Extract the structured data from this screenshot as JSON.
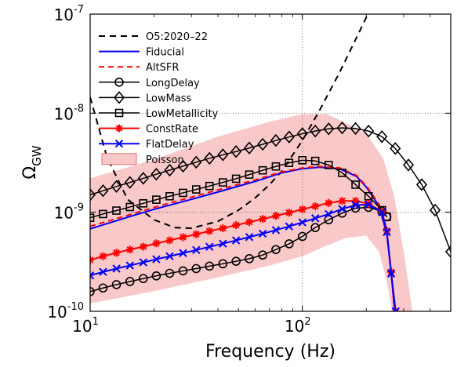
{
  "chart_data": {
    "type": "line",
    "xlabel": "Frequency (Hz)",
    "ylabel_main": "Ω",
    "ylabel_sub": "GW",
    "x_scale": "log",
    "y_scale": "log",
    "xlim": [
      10,
      500
    ],
    "ylim": [
      1e-10,
      1e-07
    ],
    "x_ticks": [
      {
        "value": 10,
        "base": "10",
        "exp": "1"
      },
      {
        "value": 100,
        "base": "10",
        "exp": "2"
      }
    ],
    "y_ticks": [
      {
        "value": 1e-10,
        "base": "10",
        "exp": "-10"
      },
      {
        "value": 1e-09,
        "base": "10",
        "exp": "-9"
      },
      {
        "value": 1e-08,
        "base": "10",
        "exp": "-8"
      },
      {
        "value": 1e-07,
        "base": "10",
        "exp": "-7"
      }
    ],
    "grid": "major-dotted",
    "legend_position": "top-left",
    "band": {
      "name": "Poisson",
      "color": "#f9c8c8",
      "edge": "#e07070",
      "upper": [
        [
          10,
          2.2e-09
        ],
        [
          20,
          3.4e-09
        ],
        [
          40,
          5.8e-09
        ],
        [
          70,
          8.2e-09
        ],
        [
          100,
          9.8e-09
        ],
        [
          130,
          9.8e-09
        ],
        [
          160,
          8e-09
        ],
        [
          200,
          6.2e-09
        ],
        [
          240,
          3.5e-09
        ],
        [
          270,
          1.5e-09
        ],
        [
          300,
          4e-10
        ],
        [
          330,
          1e-10
        ]
      ],
      "lower": [
        [
          10,
          1.2e-10
        ],
        [
          20,
          1.6e-10
        ],
        [
          40,
          2.2e-10
        ],
        [
          70,
          2.9e-10
        ],
        [
          100,
          3.6e-10
        ],
        [
          130,
          4.6e-10
        ],
        [
          160,
          5.5e-10
        ],
        [
          200,
          5.8e-10
        ],
        [
          230,
          4e-10
        ],
        [
          250,
          2e-10
        ],
        [
          265,
          1e-10
        ]
      ]
    },
    "series": [
      {
        "name": "O5:2020–22",
        "color": "#000000",
        "dash": "8,6",
        "marker": "none",
        "width": 2,
        "x": [
          10,
          12,
          15,
          20,
          25,
          30,
          40,
          50,
          60,
          70,
          80,
          100,
          120,
          150,
          180,
          210
        ],
        "y": [
          1.45e-08,
          3.6e-09,
          1.35e-09,
          8.4e-10,
          7e-10,
          6.9e-10,
          8.1e-10,
          1.05e-09,
          1.4e-09,
          1.9e-09,
          2.6e-09,
          5.3e-09,
          1.05e-08,
          2.6e-08,
          5.8e-08,
          1.15e-07
        ]
      },
      {
        "name": "Fiducial",
        "color": "#0000ff",
        "dash": "",
        "marker": "none",
        "width": 2,
        "x": [
          10,
          15,
          20,
          30,
          40,
          60,
          80,
          100,
          120,
          150,
          180,
          200,
          230,
          250,
          262,
          272
        ],
        "y": [
          6.8e-10,
          8.9e-10,
          1.07e-09,
          1.35e-09,
          1.6e-09,
          2.05e-09,
          2.5e-09,
          2.75e-09,
          2.85e-09,
          2.75e-09,
          2.3e-09,
          1.8e-09,
          1.15e-09,
          6e-10,
          2.5e-10,
          1e-10
        ]
      },
      {
        "name": "AltSFR",
        "color": "#ff0000",
        "dash": "7,5",
        "marker": "none",
        "width": 2,
        "x": [
          10,
          15,
          20,
          30,
          40,
          60,
          80,
          100,
          120,
          150,
          180,
          200,
          230,
          250,
          262,
          272
        ],
        "y": [
          7.2e-10,
          9.3e-10,
          1.12e-09,
          1.42e-09,
          1.68e-09,
          2.12e-09,
          2.55e-09,
          2.8e-09,
          2.9e-09,
          2.8e-09,
          2.35e-09,
          1.85e-09,
          1.2e-09,
          6.2e-10,
          2.6e-10,
          1e-10
        ]
      },
      {
        "name": "LongDelay",
        "color": "#000000",
        "dash": "",
        "marker": "circle",
        "width": 1.5,
        "x": [
          10,
          11.5,
          13.3,
          15.4,
          17.8,
          20.5,
          23.7,
          27.4,
          31.6,
          36.5,
          42.2,
          48.7,
          56.2,
          65,
          75,
          86.6,
          100,
          115,
          133,
          154,
          178,
          205,
          237,
          250
        ],
        "y": [
          1.58e-10,
          1.72e-10,
          1.86e-10,
          2e-10,
          2.14e-10,
          2.28e-10,
          2.42e-10,
          2.56e-10,
          2.7e-10,
          2.86e-10,
          3.02e-10,
          3.2e-10,
          3.4e-10,
          3.7e-10,
          4.2e-10,
          4.8e-10,
          5.7e-10,
          7e-10,
          8.4e-10,
          9.8e-10,
          1.1e-09,
          1.12e-09,
          1.02e-09,
          9e-10
        ]
      },
      {
        "name": "LowMass",
        "color": "#000000",
        "dash": "",
        "marker": "diamond",
        "width": 1.5,
        "x": [
          10,
          11.5,
          13.3,
          15.4,
          17.8,
          20.5,
          23.7,
          27.4,
          31.6,
          36.5,
          42.2,
          48.7,
          56.2,
          65,
          75,
          86.6,
          100,
          115,
          133,
          154,
          178,
          205,
          237,
          274,
          316,
          365,
          422,
          500
        ],
        "y": [
          1.5e-09,
          1.65e-09,
          1.82e-09,
          2e-09,
          2.2e-09,
          2.42e-09,
          2.66e-09,
          2.92e-09,
          3.2e-09,
          3.5e-09,
          3.8e-09,
          4.1e-09,
          4.45e-09,
          4.85e-09,
          5.3e-09,
          5.75e-09,
          6.2e-09,
          6.6e-09,
          6.95e-09,
          7.1e-09,
          7e-09,
          6.6e-09,
          5.8e-09,
          4.4e-09,
          3e-09,
          1.9e-09,
          1.05e-09,
          4e-10
        ]
      },
      {
        "name": "LowMetallicity",
        "color": "#000000",
        "dash": "",
        "marker": "square",
        "width": 1.5,
        "x": [
          10,
          11.5,
          13.3,
          15.4,
          17.8,
          20.5,
          23.7,
          27.4,
          31.6,
          36.5,
          42.2,
          48.7,
          56.2,
          65,
          75,
          86.6,
          100,
          115,
          133,
          154,
          178,
          205,
          237,
          250
        ],
        "y": [
          8.8e-10,
          9.6e-10,
          1.04e-09,
          1.13e-09,
          1.23e-09,
          1.34e-09,
          1.45e-09,
          1.57e-09,
          1.7e-09,
          1.84e-09,
          2e-09,
          2.18e-09,
          2.4e-09,
          2.65e-09,
          2.9e-09,
          3.15e-09,
          3.35e-09,
          3.3e-09,
          3e-09,
          2.5e-09,
          1.9e-09,
          1.45e-09,
          1.05e-09,
          9e-10
        ]
      },
      {
        "name": "ConstRate",
        "color": "#ff0000",
        "dash": "",
        "marker": "star",
        "width": 2,
        "x": [
          10,
          11.5,
          13.3,
          15.4,
          17.8,
          20.5,
          23.7,
          27.4,
          31.6,
          36.5,
          42.2,
          48.7,
          56.2,
          65,
          75,
          86.6,
          100,
          115,
          133,
          154,
          178,
          205,
          237,
          250,
          262,
          275
        ],
        "y": [
          3.3e-10,
          3.6e-10,
          3.9e-10,
          4.2e-10,
          4.5e-10,
          4.85e-10,
          5.2e-10,
          5.6e-10,
          6e-10,
          6.45e-10,
          6.9e-10,
          7.4e-10,
          7.95e-10,
          8.55e-10,
          9.2e-10,
          9.9e-10,
          1.07e-09,
          1.15e-09,
          1.24e-09,
          1.3e-09,
          1.3e-09,
          1.22e-09,
          1.02e-09,
          6.5e-10,
          2.5e-10,
          1e-10
        ]
      },
      {
        "name": "FlatDelay",
        "color": "#0000ff",
        "dash": "",
        "marker": "x",
        "width": 2,
        "x": [
          10,
          11.5,
          13.3,
          15.4,
          17.8,
          20.5,
          23.7,
          27.4,
          31.6,
          36.5,
          42.2,
          48.7,
          56.2,
          65,
          75,
          86.6,
          100,
          115,
          133,
          154,
          178,
          205,
          237,
          250,
          262,
          275
        ],
        "y": [
          2.3e-10,
          2.5e-10,
          2.7e-10,
          2.9e-10,
          3.12e-10,
          3.35e-10,
          3.6e-10,
          3.87e-10,
          4.16e-10,
          4.48e-10,
          4.82e-10,
          5.2e-10,
          5.62e-10,
          6.08e-10,
          6.6e-10,
          7.2e-10,
          7.9e-10,
          8.7e-10,
          9.6e-10,
          1.08e-09,
          1.18e-09,
          1.2e-09,
          1e-09,
          6.3e-10,
          2.4e-10,
          1e-10
        ]
      }
    ]
  }
}
